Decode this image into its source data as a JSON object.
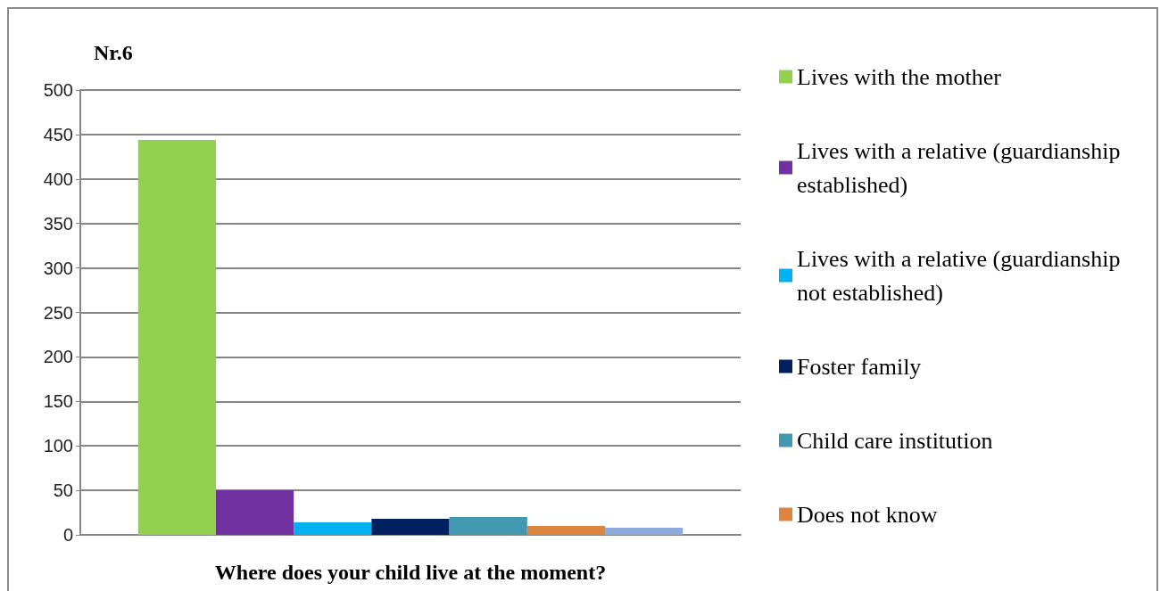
{
  "chart_data": {
    "type": "bar",
    "title": "Nr.6",
    "xlabel": "Where does your child live at the moment?",
    "categories": [
      null
    ],
    "series": [
      {
        "name": "Lives with the mother",
        "color": "#92d050",
        "values": [
          444
        ]
      },
      {
        "name": "Lives with a relative (guardianship established)",
        "color": "#7030a0",
        "values": [
          50
        ]
      },
      {
        "name": "Lives with a relative (guardianship not established)",
        "color": "#00b0f0",
        "values": [
          14
        ]
      },
      {
        "name": "Foster family",
        "color": "#002060",
        "values": [
          18
        ]
      },
      {
        "name": "Child care institution",
        "color": "#4198af",
        "values": [
          20
        ]
      },
      {
        "name": "Does not know",
        "color": "#dd8540",
        "values": [
          10
        ]
      },
      {
        "color": "#8ea9db",
        "values": [
          8
        ]
      }
    ],
    "ylim": [
      0,
      500
    ],
    "yticks": [
      0,
      50,
      100,
      150,
      200,
      250,
      300,
      350,
      400,
      450,
      500
    ],
    "grid": "y",
    "legend": "right"
  }
}
